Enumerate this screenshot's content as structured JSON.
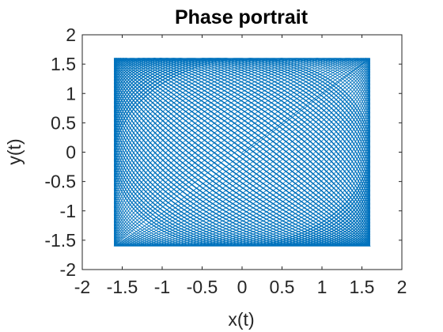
{
  "chart_data": {
    "type": "line",
    "title": "Phase portrait",
    "xlabel": "x(t)",
    "ylabel": "y(t)",
    "xlim": [
      -2,
      2
    ],
    "ylim": [
      -2,
      2
    ],
    "xticks": [
      -2,
      -1.5,
      -1,
      -0.5,
      0,
      0.5,
      1,
      1.5,
      2
    ],
    "yticks": [
      -2,
      -1.5,
      -1,
      -0.5,
      0,
      0.5,
      1,
      1.5,
      2
    ],
    "xtick_labels": [
      "-2",
      "-1.5",
      "-1",
      "-0.5",
      "0",
      "0.5",
      "1",
      "1.5",
      "2"
    ],
    "ytick_labels": [
      "-2",
      "-1.5",
      "-1",
      "-0.5",
      "0",
      "0.5",
      "1",
      "1.5",
      "2"
    ],
    "grid": false,
    "box": true,
    "series_color": "#0072BD",
    "trajectory": {
      "description_values": "quasi-periodic elliptical orbits along the diagonal",
      "x_range": [
        -1.6,
        1.6
      ],
      "y_range": [
        -1.6,
        1.6
      ]
    }
  }
}
